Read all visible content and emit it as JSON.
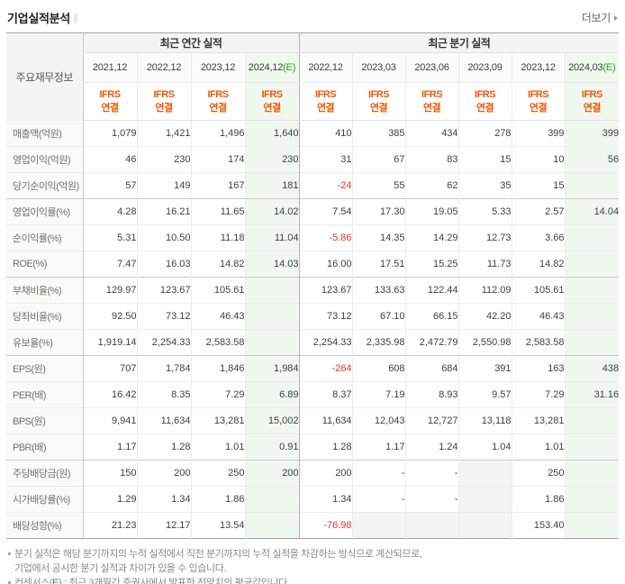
{
  "page": {
    "title": "기업실적분석",
    "more_label": "더보기"
  },
  "colors": {
    "ifrs_orange": "#f05708",
    "estimate_green": "#22a522",
    "negative_red": "#e5332d",
    "estimate_column_bg": "#f0f7ef",
    "empty_cell_gray": "#f4f4f4"
  },
  "table": {
    "corner_label": "주요재무정보",
    "sections": [
      {
        "label": "최근 연간 실적"
      },
      {
        "label": "최근 분기 실적"
      }
    ],
    "columns": [
      {
        "period": "2021,12",
        "standard": "IFRS\n연결",
        "estimate": false
      },
      {
        "period": "2022,12",
        "standard": "IFRS\n연결",
        "estimate": false
      },
      {
        "period": "2023,12",
        "standard": "IFRS\n연결",
        "estimate": false
      },
      {
        "period": "2024,12",
        "suffix": "(E)",
        "standard": "IFRS\n연결",
        "estimate": true
      },
      {
        "period": "2022,12",
        "standard": "IFRS\n연결",
        "estimate": false
      },
      {
        "period": "2023,03",
        "standard": "IFRS\n연결",
        "estimate": false
      },
      {
        "period": "2023,06",
        "standard": "IFRS\n연결",
        "estimate": false
      },
      {
        "period": "2023,09",
        "standard": "IFRS\n연결",
        "estimate": false
      },
      {
        "period": "2023,12",
        "standard": "IFRS\n연결",
        "estimate": false
      },
      {
        "period": "2024,03",
        "suffix": "(E)",
        "standard": "IFRS\n연결",
        "estimate": true
      }
    ],
    "rows": [
      {
        "label": "매출액(억원)",
        "group_start": false,
        "values": [
          "1,079",
          "1,421",
          "1,496",
          "1,640",
          "410",
          "385",
          "434",
          "278",
          "399",
          "399"
        ]
      },
      {
        "label": "영업이익(억원)",
        "group_start": false,
        "values": [
          "46",
          "230",
          "174",
          "230",
          "31",
          "67",
          "83",
          "15",
          "10",
          "56"
        ]
      },
      {
        "label": "당기순이익(억원)",
        "group_start": false,
        "values": [
          "57",
          "149",
          "167",
          "181",
          "-24",
          "55",
          "62",
          "35",
          "15",
          ""
        ]
      },
      {
        "label": "영업이익률(%)",
        "group_start": true,
        "values": [
          "4.28",
          "16.21",
          "11.65",
          "14.02",
          "7.54",
          "17.30",
          "19.05",
          "5.33",
          "2.57",
          "14.04"
        ]
      },
      {
        "label": "순이익률(%)",
        "group_start": false,
        "values": [
          "5.31",
          "10.50",
          "11.18",
          "11.04",
          "-5.86",
          "14.35",
          "14.29",
          "12.73",
          "3.66",
          ""
        ]
      },
      {
        "label": "ROE(%)",
        "group_start": false,
        "values": [
          "7.47",
          "16.03",
          "14.82",
          "14.03",
          "16.00",
          "17.51",
          "15.25",
          "11.73",
          "14.82",
          ""
        ]
      },
      {
        "label": "부채비율(%)",
        "group_start": true,
        "values": [
          "129.97",
          "123.67",
          "105.61",
          "",
          "123.67",
          "133.63",
          "122.44",
          "112.09",
          "105.61",
          ""
        ]
      },
      {
        "label": "당좌비율(%)",
        "group_start": false,
        "values": [
          "92.50",
          "73.12",
          "46.43",
          "",
          "73.12",
          "67.10",
          "66.15",
          "42.20",
          "46.43",
          ""
        ]
      },
      {
        "label": "유보율(%)",
        "group_start": false,
        "values": [
          "1,919.14",
          "2,254.33",
          "2,583.58",
          "",
          "2,254.33",
          "2,335.98",
          "2,472.79",
          "2,550.98",
          "2,583.58",
          ""
        ]
      },
      {
        "label": "EPS(원)",
        "group_start": true,
        "values": [
          "707",
          "1,784",
          "1,846",
          "1,984",
          "-264",
          "608",
          "684",
          "391",
          "163",
          "438"
        ]
      },
      {
        "label": "PER(배)",
        "group_start": false,
        "values": [
          "16.42",
          "8.35",
          "7.29",
          "6.89",
          "8.37",
          "7.19",
          "8.93",
          "9.57",
          "7.29",
          "31.16"
        ]
      },
      {
        "label": "BPS(원)",
        "group_start": false,
        "values": [
          "9,941",
          "11,634",
          "13,281",
          "15,002",
          "11,634",
          "12,043",
          "12,727",
          "13,118",
          "13,281",
          ""
        ]
      },
      {
        "label": "PBR(배)",
        "group_start": false,
        "values": [
          "1.17",
          "1.28",
          "1.01",
          "0.91",
          "1.28",
          "1.17",
          "1.24",
          "1.04",
          "1.01",
          ""
        ]
      },
      {
        "label": "주당배당금(원)",
        "group_start": true,
        "values": [
          "150",
          "200",
          "250",
          "200",
          "200",
          "-",
          "-",
          "",
          "250",
          ""
        ]
      },
      {
        "label": "시가배당률(%)",
        "group_start": false,
        "values": [
          "1.29",
          "1.34",
          "1.86",
          "",
          "1.34",
          "-",
          "-",
          "",
          "1.86",
          ""
        ]
      },
      {
        "label": "배당성향(%)",
        "group_start": false,
        "values": [
          "21.23",
          "12.17",
          "13.54",
          "",
          "-76.98",
          "",
          "",
          "",
          "153.40",
          ""
        ]
      }
    ]
  },
  "footnotes": {
    "note1_line1": "분기 실적은 해당 분기까지의 누적 실적에서 직전 분기까지의 누적 실적을 차감하는 방식으로 계산되므로,",
    "note1_line2": "기업에서 공시한 분기 실적과 차이가 있을 수 있습니다.",
    "note2_prefix": "컨센서스(",
    "note2_e": "E",
    "note2_suffix": ") : 최근 3개월간 증권사에서 발표한 전망치의 평균값입니다."
  }
}
